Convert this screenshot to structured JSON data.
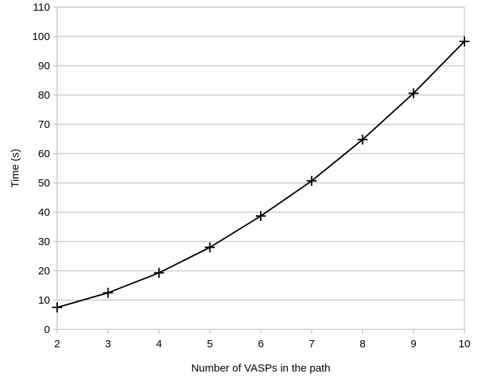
{
  "chart_data": {
    "type": "line",
    "title": "",
    "xlabel": "Number of VASPs in the path",
    "ylabel": "Time (s)",
    "x": [
      2,
      3,
      4,
      5,
      6,
      7,
      8,
      9,
      10
    ],
    "series": [
      {
        "values": [
          7.5,
          12.5,
          19.3,
          28.0,
          38.7,
          50.7,
          64.8,
          80.6,
          98.3
        ],
        "color": "#000000",
        "marker": "plus"
      }
    ],
    "xlim": [
      2,
      10
    ],
    "ylim": [
      0,
      110
    ],
    "x_ticks": [
      "2",
      "3",
      "4",
      "5",
      "6",
      "7",
      "8",
      "9",
      "10"
    ],
    "y_ticks": [
      "0",
      "10",
      "20",
      "30",
      "40",
      "50",
      "60",
      "70",
      "80",
      "90",
      "100",
      "110"
    ],
    "grid": "horizontal",
    "legend": "none",
    "gridline_color": "#b3b3b3"
  }
}
